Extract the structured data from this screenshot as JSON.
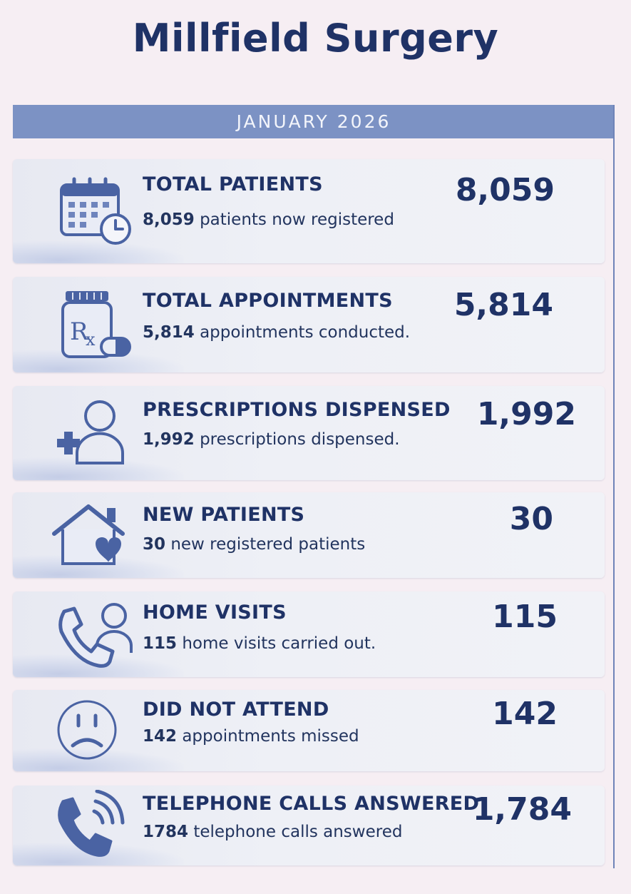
{
  "header": {
    "title": "Millfield Surgery",
    "month": "JANUARY 2026"
  },
  "colors": {
    "navy": "#1f3266",
    "icon_blue": "#4a63a3",
    "banner": "#7c92c4",
    "background": "#f6eef3"
  },
  "stats": [
    {
      "label": "TOTAL PATIENTS",
      "value": "8,059",
      "desc_value": "8,059",
      "desc_text": " patients now registered",
      "icon": "calendar-clock-icon"
    },
    {
      "label": "TOTAL APPOINTMENTS",
      "value": "5,814",
      "desc_value": "5,814",
      "desc_text": " appointments conducted.",
      "icon": "prescription-bottle-icon"
    },
    {
      "label": "PRESCRIPTIONS DISPENSED",
      "value": "1,992",
      "desc_value": "1,992",
      "desc_text": " prescriptions dispensed.",
      "icon": "patient-plus-icon"
    },
    {
      "label": "NEW PATIENTS",
      "value": "30",
      "desc_value": "30",
      "desc_text": " new registered patients",
      "icon": "home-heart-icon"
    },
    {
      "label": "HOME VISITS",
      "value": "115",
      "desc_value": "115",
      "desc_text": " home visits carried out.",
      "icon": "phone-person-icon"
    },
    {
      "label": "DID NOT ATTEND",
      "value": "142",
      "desc_value": "142",
      "desc_text": " appointments missed",
      "icon": "sad-face-icon"
    },
    {
      "label": "TELEPHONE CALLS ANSWERED",
      "value": "1,784",
      "desc_value": "1784",
      "desc_text": " telephone calls answered",
      "icon": "phone-ringing-icon"
    }
  ]
}
